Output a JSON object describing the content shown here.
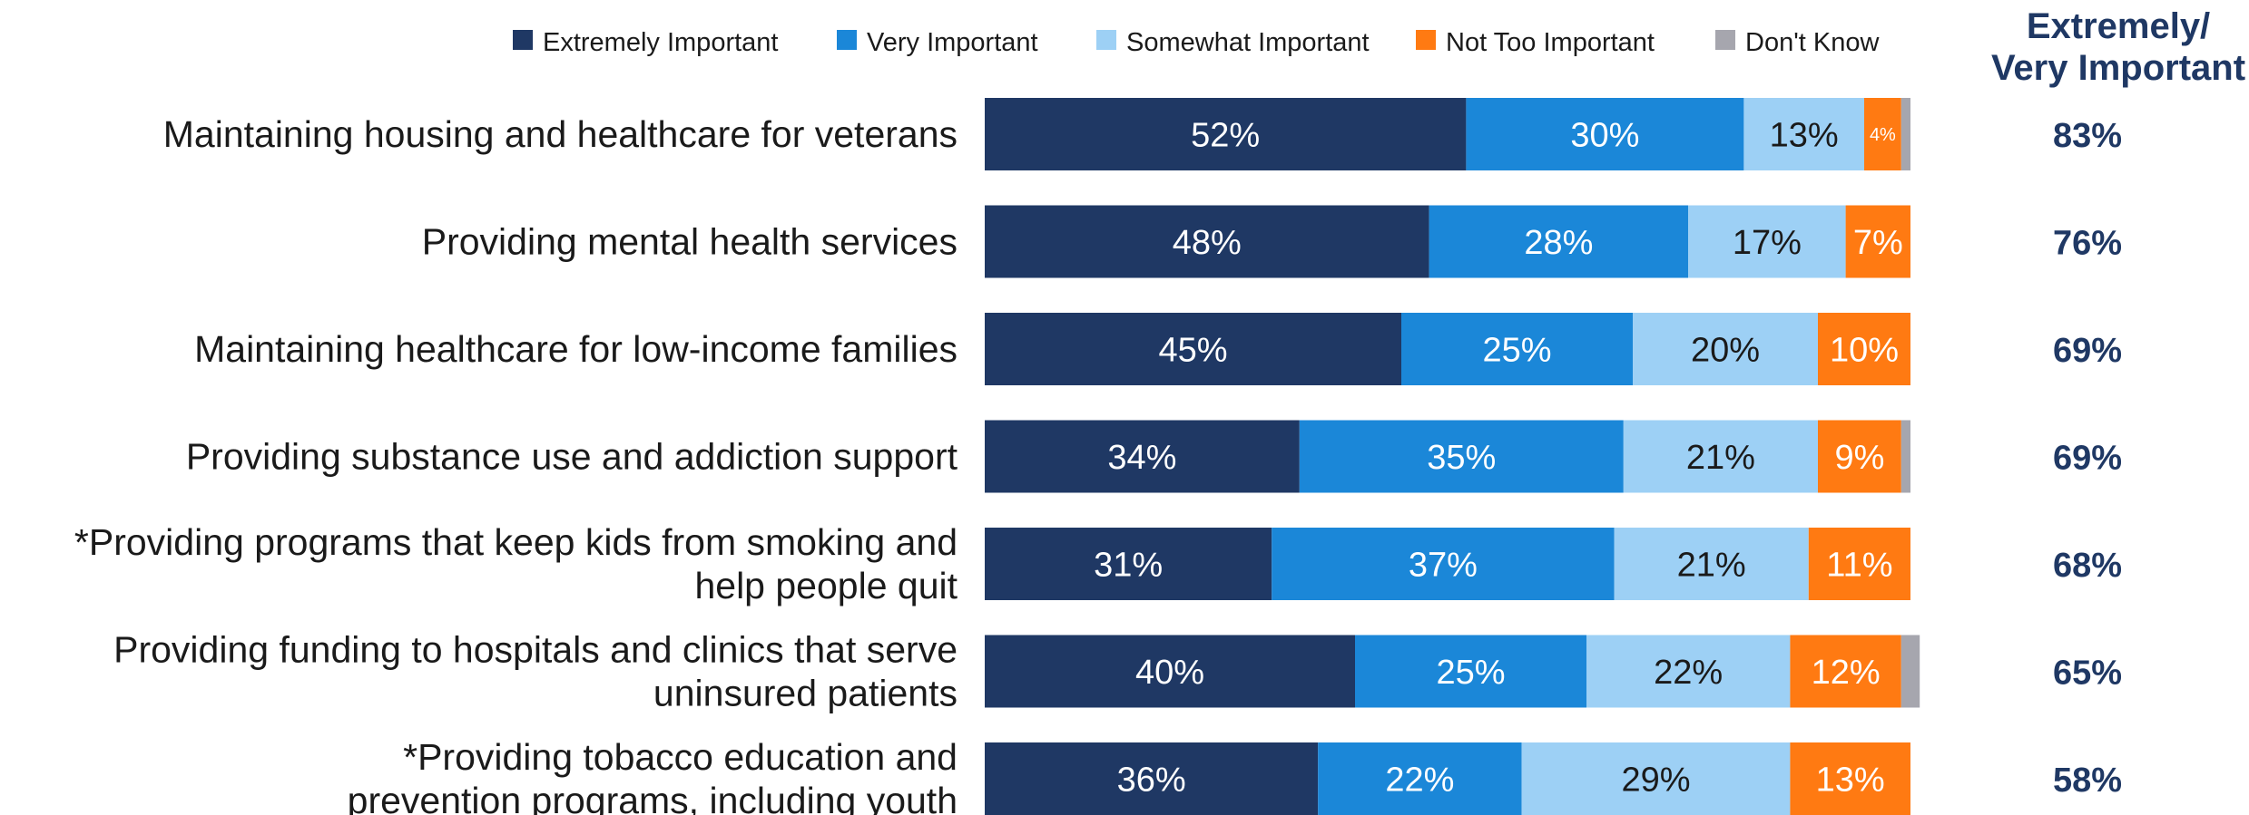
{
  "chart_data": {
    "type": "bar",
    "orientation": "horizontal",
    "stacked": true,
    "xlim": [
      0,
      100
    ],
    "legend_position": "top",
    "summary_header": "Extremely/ Very Important",
    "categories": [
      [
        "Maintaining housing and healthcare for veterans"
      ],
      [
        "Providing mental health services"
      ],
      [
        "Maintaining healthcare for low-income families"
      ],
      [
        "Providing substance use and addiction support"
      ],
      [
        "*Providing programs that keep kids from smoking and",
        "help people quit"
      ],
      [
        "Providing funding to hospitals and clinics that serve",
        "uninsured patients"
      ],
      [
        "*Providing tobacco education and",
        "prevention programs, including youth"
      ]
    ],
    "series": [
      {
        "name": "Extremely Important",
        "color": "#1f3864",
        "label_color": "#ffffff",
        "values": [
          52,
          48,
          45,
          34,
          31,
          40,
          36
        ]
      },
      {
        "name": "Very Important",
        "color": "#1b87d8",
        "label_color": "#ffffff",
        "values": [
          30,
          28,
          25,
          35,
          37,
          25,
          22
        ]
      },
      {
        "name": "Somewhat Important",
        "color": "#9dd0f5",
        "label_color": "#1a1a1a",
        "values": [
          13,
          17,
          20,
          21,
          21,
          22,
          29
        ]
      },
      {
        "name": "Not Too Important",
        "color": "#ff7a12",
        "label_color": "#ffffff",
        "values": [
          4,
          7,
          10,
          9,
          11,
          12,
          13
        ]
      },
      {
        "name": "Don't Know",
        "color": "#a6a6ae",
        "label_color": "#ffffff",
        "values": [
          1,
          0,
          0,
          1,
          0,
          2,
          0
        ]
      }
    ],
    "data_labels": [
      [
        "52%",
        "30%",
        "13%",
        "4%",
        ""
      ],
      [
        "48%",
        "28%",
        "17%",
        "7%",
        ""
      ],
      [
        "45%",
        "25%",
        "20%",
        "10%",
        ""
      ],
      [
        "34%",
        "35%",
        "21%",
        "9%",
        ""
      ],
      [
        "31%",
        "37%",
        "21%",
        "11%",
        ""
      ],
      [
        "40%",
        "25%",
        "22%",
        "12%",
        ""
      ],
      [
        "36%",
        "22%",
        "29%",
        "13%",
        ""
      ]
    ],
    "summary_values": [
      "83%",
      "76%",
      "69%",
      "69%",
      "68%",
      "65%",
      "58%"
    ],
    "summary_color": "#1f3864"
  }
}
